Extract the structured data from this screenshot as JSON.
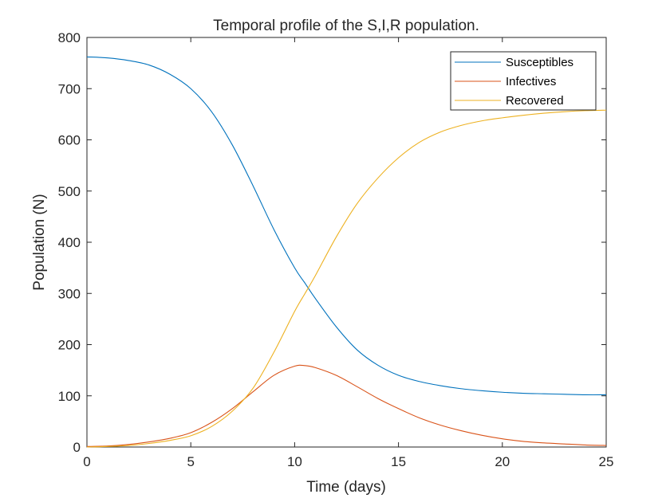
{
  "chart_data": {
    "type": "line",
    "title": "Temporal profile of the S,I,R population.",
    "xlabel": "Time (days)",
    "ylabel": "Population (N)",
    "xlim": [
      0,
      25
    ],
    "ylim": [
      0,
      800
    ],
    "xticks": [
      0,
      5,
      10,
      15,
      20,
      25
    ],
    "yticks": [
      0,
      100,
      200,
      300,
      400,
      500,
      600,
      700,
      800
    ],
    "xtick_labels": [
      "0",
      "5",
      "10",
      "15",
      "20",
      "25"
    ],
    "ytick_labels": [
      "0",
      "100",
      "200",
      "300",
      "400",
      "500",
      "600",
      "700",
      "800"
    ],
    "grid": false,
    "legend_position": "top-right",
    "x": [
      0,
      1,
      2,
      3,
      4,
      5,
      6,
      7,
      8,
      9,
      10,
      10.5,
      11,
      12,
      13,
      14,
      15,
      16,
      17,
      18,
      19,
      20,
      21,
      22,
      23,
      24,
      25
    ],
    "series": [
      {
        "name": "Susceptibles",
        "color": "#0072BD",
        "values": [
          762,
          760,
          755,
          746,
          728,
          700,
          655,
          590,
          510,
          425,
          350,
          320,
          290,
          235,
          190,
          160,
          140,
          128,
          120,
          114,
          110,
          107,
          105,
          104,
          103,
          102,
          102
        ]
      },
      {
        "name": "Infectives",
        "color": "#D95319",
        "values": [
          1,
          2,
          5,
          10,
          17,
          28,
          48,
          75,
          108,
          140,
          158,
          159,
          155,
          140,
          118,
          95,
          75,
          57,
          43,
          32,
          23,
          16,
          11,
          8,
          6,
          4,
          3
        ]
      },
      {
        "name": "Recovered",
        "color": "#EDB120",
        "values": [
          0,
          1,
          3,
          7,
          13,
          22,
          40,
          70,
          115,
          185,
          265,
          300,
          335,
          410,
          475,
          525,
          565,
          595,
          615,
          628,
          637,
          643,
          648,
          652,
          655,
          657,
          658
        ]
      }
    ]
  }
}
